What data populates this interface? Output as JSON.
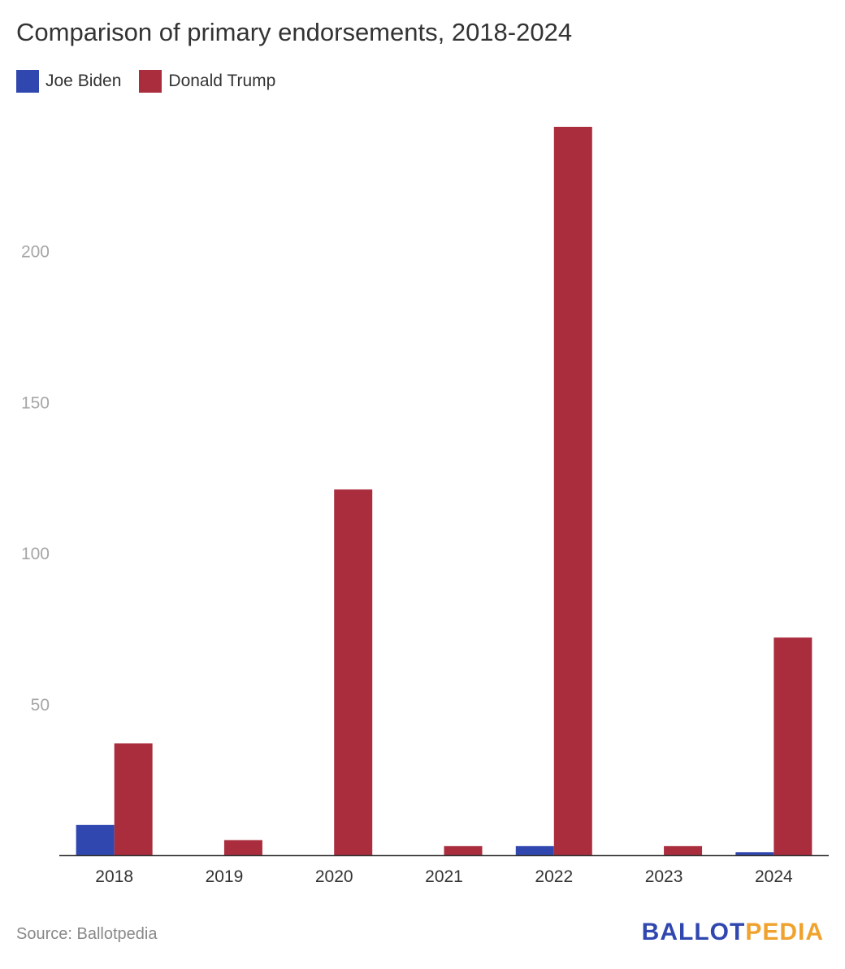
{
  "chart_data": {
    "type": "bar",
    "title": "Comparison of primary endorsements, 2018-2024",
    "xlabel": "",
    "ylabel": "",
    "categories": [
      "2018",
      "2019",
      "2020",
      "2021",
      "2022",
      "2023",
      "2024"
    ],
    "series": [
      {
        "name": "Joe Biden",
        "color": "#3147b0",
        "values": [
          10,
          0,
          0,
          0,
          3,
          0,
          1
        ]
      },
      {
        "name": "Donald Trump",
        "color": "#aa2d3e",
        "values": [
          37,
          5,
          121,
          3,
          241,
          3,
          72
        ]
      }
    ],
    "ylim": [
      0,
      241
    ],
    "yticks": [
      50,
      100,
      150,
      200
    ],
    "grid": false,
    "legend_position": "top-left"
  },
  "source": "Source: Ballotpedia",
  "logo": {
    "part1": "BALLOT",
    "part2": "PEDIA",
    "color1": "#3147b0",
    "color2": "#f0a22e"
  }
}
